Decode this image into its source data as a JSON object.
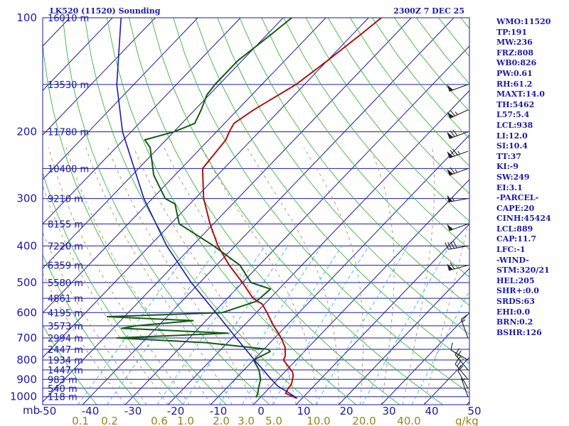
{
  "chart_data": {
    "type": "skew-t",
    "title": "LK520 (11520) Sounding",
    "valid_time": "2300Z  7 DEC 25",
    "pressure_levels": [
      100,
      200,
      300,
      400,
      500,
      600,
      700,
      800,
      900,
      1000
    ],
    "pressure_labels": [
      "100",
      "200",
      "300",
      "400",
      "500",
      "600",
      "700",
      "800",
      "900",
      "1000"
    ],
    "pressure_unit": "mb",
    "height_labels": [
      {
        "p": 100,
        "label": "16010 m"
      },
      {
        "p": 150,
        "label": "13530 m"
      },
      {
        "p": 200,
        "label": "11780 m"
      },
      {
        "p": 250,
        "label": "10400 m"
      },
      {
        "p": 300,
        "label": "9210 m"
      },
      {
        "p": 350,
        "label": "8155 m"
      },
      {
        "p": 400,
        "label": "7220 m"
      },
      {
        "p": 450,
        "label": "6359 m"
      },
      {
        "p": 500,
        "label": "5580 m"
      },
      {
        "p": 550,
        "label": "4861 m"
      },
      {
        "p": 600,
        "label": "4195 m"
      },
      {
        "p": 650,
        "label": "3573 m"
      },
      {
        "p": 700,
        "label": "2994 m"
      },
      {
        "p": 750,
        "label": "2447 m"
      },
      {
        "p": 800,
        "label": "1934 m"
      },
      {
        "p": 850,
        "label": "1447 m"
      },
      {
        "p": 900,
        "label": "983 m"
      },
      {
        "p": 950,
        "label": "540 m"
      },
      {
        "p": 1000,
        "label": "118 m"
      }
    ],
    "temperature_ticks": [
      -50,
      -40,
      -30,
      -20,
      -10,
      0,
      10,
      20,
      30,
      40,
      50
    ],
    "temperature_tick_labels": [
      "-50",
      "-40",
      "-30",
      "-20",
      "-10",
      "0",
      "10",
      "20",
      "30",
      "40",
      "50"
    ],
    "temperature_unit": "C",
    "mixing_ratio_labels": [
      "0.1",
      "0.2",
      "0.6",
      "1.0",
      "2.0",
      "3.0",
      "5.0",
      "10.0",
      "20.0",
      "40.0"
    ],
    "mixing_ratio_unit": "g/kg",
    "series": [
      {
        "name": "temperature",
        "color": "#b01010",
        "points": [
          [
            1010,
            8.8
          ],
          [
            980,
            5.0
          ],
          [
            950,
            4.5
          ],
          [
            930,
            4.4
          ],
          [
            900,
            3.5
          ],
          [
            880,
            2.8
          ],
          [
            860,
            1.8
          ],
          [
            850,
            1.0
          ],
          [
            800,
            -3.0
          ],
          [
            780,
            -3.5
          ],
          [
            740,
            -5.5
          ],
          [
            700,
            -8.5
          ],
          [
            680,
            -10.2
          ],
          [
            650,
            -13.0
          ],
          [
            600,
            -17.5
          ],
          [
            570,
            -20.5
          ],
          [
            550,
            -24.0
          ],
          [
            500,
            -30.0
          ],
          [
            450,
            -37.0
          ],
          [
            400,
            -44.0
          ],
          [
            350,
            -50.8
          ],
          [
            300,
            -58.0
          ],
          [
            250,
            -65.0
          ],
          [
            210,
            -66.0
          ],
          [
            200,
            -67.0
          ],
          [
            190,
            -67.8
          ],
          [
            175,
            -66.2
          ],
          [
            150,
            -62.0
          ],
          [
            130,
            -60.0
          ],
          [
            110,
            -58.0
          ],
          [
            100,
            -57.0
          ]
        ]
      },
      {
        "name": "dewpoint",
        "color": "#145a14",
        "points": [
          [
            1005,
            -1.0
          ],
          [
            980,
            -1.5
          ],
          [
            950,
            -2.5
          ],
          [
            900,
            -4.0
          ],
          [
            850,
            -6.5
          ],
          [
            800,
            -10.0
          ],
          [
            760,
            -8.0
          ],
          [
            750,
            -9.0
          ],
          [
            720,
            -25.0
          ],
          [
            700,
            -47.0
          ],
          [
            680,
            -22.0
          ],
          [
            660,
            -48.0
          ],
          [
            650,
            -45.0
          ],
          [
            630,
            -33.0
          ],
          [
            615,
            -54.0
          ],
          [
            600,
            -28.0
          ],
          [
            560,
            -22.5
          ],
          [
            520,
            -22.0
          ],
          [
            500,
            -28.0
          ],
          [
            450,
            -34.5
          ],
          [
            400,
            -45.0
          ],
          [
            350,
            -58.0
          ],
          [
            310,
            -63.5
          ],
          [
            300,
            -67.0
          ],
          [
            260,
            -75.0
          ],
          [
            220,
            -82.0
          ],
          [
            210,
            -85.0
          ],
          [
            200,
            -80.0
          ],
          [
            190,
            -77.0
          ],
          [
            175,
            -78.5
          ],
          [
            160,
            -80.5
          ],
          [
            150,
            -81.0
          ],
          [
            130,
            -81.0
          ],
          [
            110,
            -79.0
          ],
          [
            100,
            -78.0
          ]
        ]
      },
      {
        "name": "parcel",
        "color": "#1a1ab0",
        "points": [
          [
            1010,
            8.8
          ],
          [
            980,
            6.0
          ],
          [
            938,
            1.6
          ],
          [
            900,
            -1.5
          ],
          [
            850,
            -5.5
          ],
          [
            800,
            -9.8
          ],
          [
            700,
            -19.0
          ],
          [
            600,
            -29.5
          ],
          [
            500,
            -42.0
          ],
          [
            400,
            -56.0
          ],
          [
            300,
            -72.0
          ],
          [
            200,
            -92.0
          ],
          [
            150,
            -104.0
          ],
          [
            100,
            -118.0
          ]
        ]
      }
    ],
    "wind_barbs": [
      {
        "p": 150,
        "dir": 250,
        "speed_kt": 50
      },
      {
        "p": 175,
        "dir": 245,
        "speed_kt": 65
      },
      {
        "p": 200,
        "dir": 250,
        "speed_kt": 70
      },
      {
        "p": 225,
        "dir": 250,
        "speed_kt": 75
      },
      {
        "p": 250,
        "dir": 250,
        "speed_kt": 65
      },
      {
        "p": 300,
        "dir": 260,
        "speed_kt": 55
      },
      {
        "p": 350,
        "dir": 250,
        "speed_kt": 50
      },
      {
        "p": 400,
        "dir": 260,
        "speed_kt": 40
      },
      {
        "p": 450,
        "dir": 255,
        "speed_kt": 60
      },
      {
        "p": 700,
        "dir": 340,
        "speed_kt": 15
      },
      {
        "p": 800,
        "dir": 300,
        "speed_kt": 10
      },
      {
        "p": 850,
        "dir": 320,
        "speed_kt": 25
      },
      {
        "p": 900,
        "dir": 320,
        "speed_kt": 25
      },
      {
        "p": 950,
        "dir": 330,
        "speed_kt": 10
      },
      {
        "p": 1000,
        "dir": 340,
        "speed_kt": 5
      }
    ],
    "indices": [
      "WMO:11520",
      "TP:191",
      "MW:236",
      "FRZ:808",
      "WB0:826",
      "PW:0.61",
      "RH:61.2",
      "MAXT:14.0",
      "TH:5462",
      "L57:5.4",
      "LCL:938",
      "LI:12.0",
      "SI:10.4",
      "TT:37",
      "KI:-9",
      "SW:249",
      "EI:3.1",
      "-PARCEL-",
      "CAPE:20",
      "CINH:45424",
      "LCL:889",
      "CAP:11.7",
      "LFC:-1",
      "-WIND-",
      "STM:320/21",
      "HEL:205",
      "SHR+:0.0",
      "SRDS:63",
      "EHI:0.0",
      "BRN:0.2",
      "BSHR:126"
    ]
  }
}
